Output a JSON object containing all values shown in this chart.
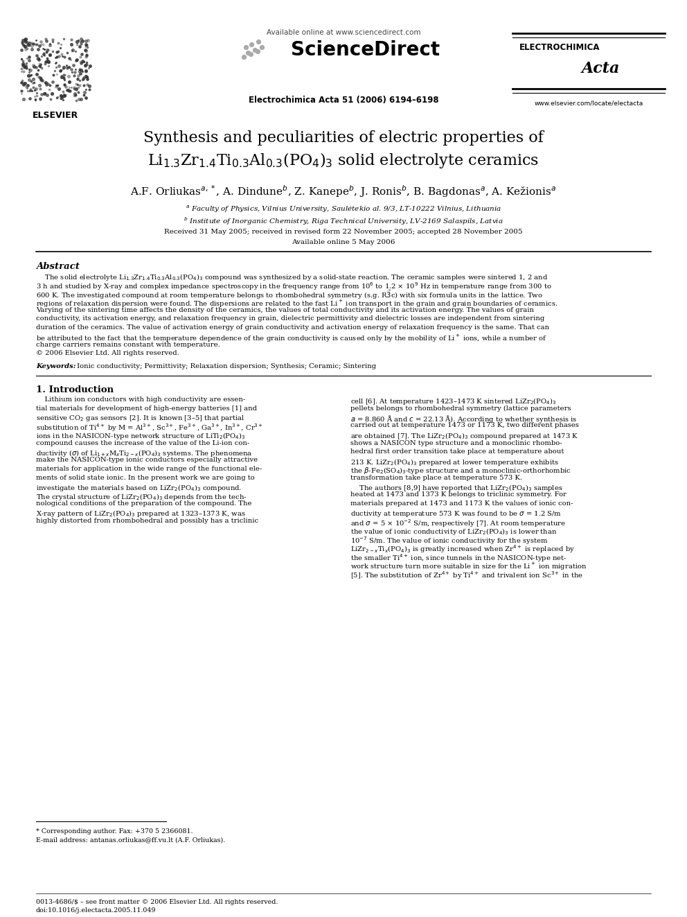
{
  "page_width": 9.92,
  "page_height": 13.23,
  "bg_color": "#ffffff",
  "available_online": "Available online at www.sciencedirect.com",
  "sciencedirect": "ScienceDirect",
  "journal_line": "Electrochimica Acta 51 (2006) 6194–6198",
  "elsevier_text": "ELSEVIER",
  "electrochimica": "ELECTROCHIMICA",
  "acta_text": "Acta",
  "journal_url": "www.elsevier.com/locate/electacta",
  "title_line1": "Synthesis and peculiarities of electric properties of",
  "title_line2": "Li$_{1.3}$Zr$_{1.4}$Ti$_{0.3}$Al$_{0.3}$(PO$_4$)$_3$ solid electrolyte ceramics",
  "authors_str": "A.F. Orliukas$^{a,*}$, A. Dindune$^{b}$, Z. Kanepe$^{b}$, J. Ronis$^{b}$, B. Bagdonas$^{a}$, A. Kežionis$^{a}$",
  "affil_a": "$^{a}$ Faculty of Physics, Vilnius University, Saulėtekio al. 9/3, LT-10222 Vilnius, Lithuania",
  "affil_b": "$^{b}$ Institute of Inorganic Chemistry, Riga Technical University, LV-2169 Salaspils, Latvia",
  "received": "Received 31 May 2005; received in revised form 22 November 2005; accepted 28 November 2005",
  "available": "Available online 5 May 2006",
  "abstract_title": "Abstract",
  "keywords_label": "Keywords:",
  "keywords": " Ionic conductivity; Permittivity; Relaxation dispersion; Synthesis; Ceramic; Sintering",
  "section1_title": "1. Introduction",
  "footnote_line1": "* Corresponding author. Fax: +370 5 2366081.",
  "footnote_line2": "E-mail address: antanas.orliukas@ff.vu.lt (A.F. Orliukas).",
  "footer_line1": "0013-4686/$ – see front matter © 2006 Elsevier Ltd. All rights reserved.",
  "footer_line2": "doi:10.1016/j.electacta.2005.11.049",
  "abstract_lines": [
    "    The solid electrolyte Li$_{1.3}$Zr$_{1.4}$Ti$_{0.3}$Al$_{0.3}$(PO$_4$)$_3$ compound was synthesized by a solid-state reaction. The ceramic samples were sintered 1, 2 and",
    "3 h and studied by X-ray and complex impedance spectroscopy in the frequency range from 10$^6$ to 1.2 × 10$^9$ Hz in temperature range from 300 to",
    "600 K. The investigated compound at room temperature belongs to rhombohedral symmetry (s.g. R$\\bar{3}$c) with six formula units in the lattice. Two",
    "regions of relaxation dispersion were found. The dispersions are related to the fast Li$^+$ ion transport in the grain and grain boundaries of ceramics.",
    "Varying of the sintering time affects the density of the ceramics, the values of total conductivity and its activation energy. The values of grain",
    "conductivity, its activation energy, and relaxation frequency in grain, dielectric permittivity and dielectric losses are independent from sintering",
    "duration of the ceramics. The value of activation energy of grain conductivity and activation energy of relaxation frequency is the same. That can",
    "be attributed to the fact that the temperature dependence of the grain conductivity is caused only by the mobility of Li$^+$ ions, while a number of",
    "charge carriers remains constant with temperature.",
    "© 2006 Elsevier Ltd. All rights reserved."
  ],
  "col1_lines": [
    "    Lithium ion conductors with high conductivity are essen-",
    "tial materials for development of high-energy batteries [1] and",
    "sensitive CO$_2$ gas sensors [2]. It is known [3–5] that partial",
    "substitution of Ti$^{4+}$ by M = Al$^{3+}$, Sc$^{3+}$, Fe$^{3+}$, Ga$^{3+}$, In$^{3+}$, Cr$^{3+}$",
    "ions in the NASICON-type network structure of LiTi$_2$(PO$_4$)$_3$",
    "compound causes the increase of the value of the Li-ion con-",
    "ductivity ($\\sigma$) of Li$_{1+x}$M$_x$Ti$_{2-x}$(PO$_4$)$_3$ systems. The phenomena",
    "make the NASICON-type ionic conductors especially attractive",
    "materials for application in the wide range of the functional ele-",
    "ments of solid state ionic. In the present work we are going to",
    "investigate the materials based on LiZr$_2$(PO$_4$)$_3$ compound.",
    "The crystal structure of LiZr$_2$(PO$_4$)$_3$ depends from the tech-",
    "nological conditions of the preparation of the compound. The",
    "X-ray pattern of LiZr$_2$(PO$_4$)$_3$ prepared at 1323–1373 K, was",
    "highly distorted from rhombohedral and possibly has a triclinic"
  ],
  "col2_lines": [
    "cell [6]. At temperature 1423–1473 K sintered LiZr$_2$(PO$_4$)$_3$",
    "pellets belongs to rhombohedral symmetry (lattice parameters",
    "$a$ = 8.860 Å and $c$ = 22.13 Å). According to whether synthesis is",
    "carried out at temperature 1473 or 1173 K, two different phases",
    "are obtained [7]. The LiZr$_2$(PO$_4$)$_3$ compound prepared at 1473 K",
    "shows a NASICON type structure and a monoclinic rhombo-",
    "hedral first order transition take place at temperature about",
    "213 K. LiZr$_2$(PO$_4$)$_3$ prepared at lower temperature exhibits",
    "the $\\beta$-Fe$_2$(SO$_4$)$_3$-type structure and a monoclinic-orthorhombic",
    "transformation take place at temperature 573 K.",
    "    The authors [8,9] have reported that LiZr$_2$(PO$_4$)$_3$ samples",
    "heated at 1473 and 1373 K belongs to triclinic symmetry. For",
    "materials prepared at 1473 and 1173 K the values of ionic con-",
    "ductivity at temperature 573 K was found to be $\\sigma$ = 1.2 S/m",
    "and $\\sigma$ = 5 × 10$^{-2}$ S/m, respectively [7]. At room temperature",
    "the value of ionic conductivity of LiZr$_2$(PO$_4$)$_3$ is lower than",
    "10$^{-7}$ S/m. The value of ionic conductivity for the system",
    "LiZr$_{2-x}$Ti$_x$(PO$_4$)$_3$ is greatly increased when Zr$^{4+}$ is replaced by",
    "the smaller Ti$^{4+}$ ion, since tunnels in the NASICON-type net-",
    "work structure turn more suitable in size for the Li$^+$ ion migration",
    "[5]. The substitution of Zr$^{4+}$ by Ti$^{4+}$ and trivalent ion Sc$^{3+}$ in the"
  ]
}
